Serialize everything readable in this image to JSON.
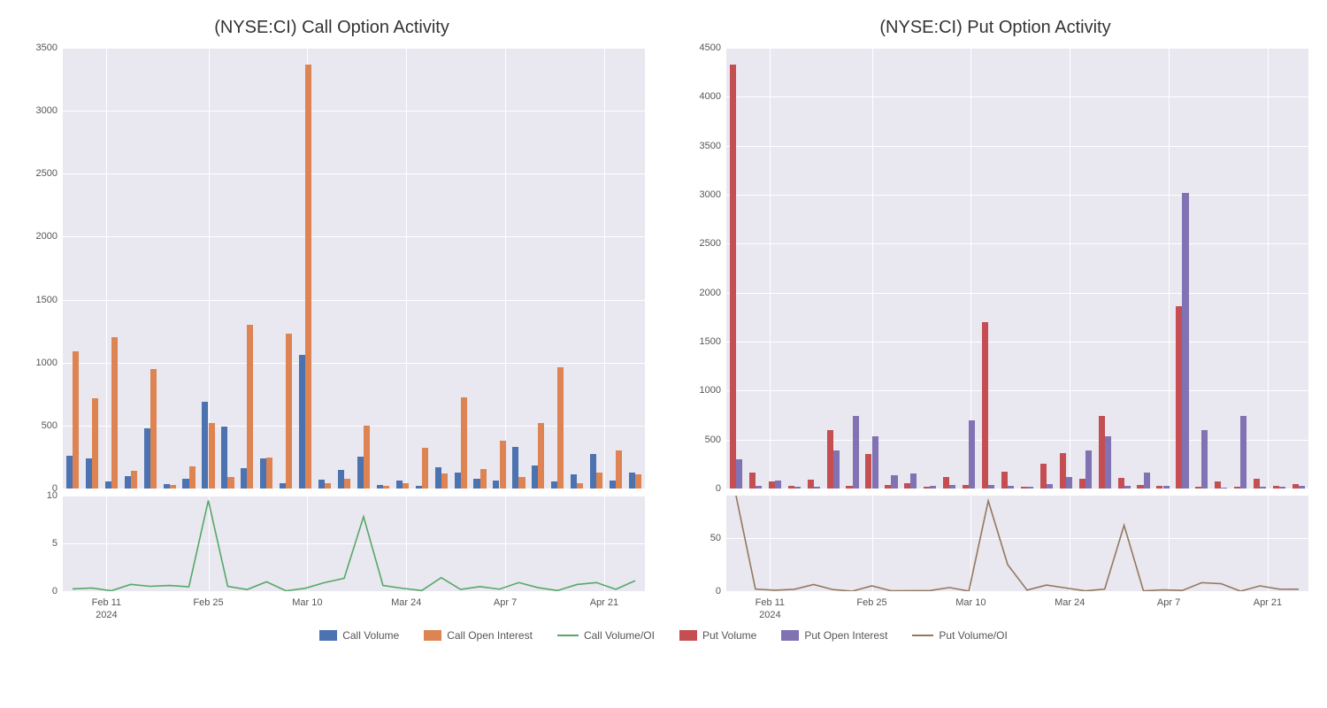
{
  "dates": [
    "2024-02-07",
    "2024-02-09",
    "2024-02-13",
    "2024-02-15",
    "2024-02-17",
    "2024-02-21",
    "2024-02-24",
    "2024-02-27",
    "2024-02-29",
    "2024-03-02",
    "2024-03-05",
    "2024-03-08",
    "2024-03-11",
    "2024-03-13",
    "2024-03-15",
    "2024-03-18",
    "2024-03-21",
    "2024-03-24",
    "2024-03-27",
    "2024-03-30",
    "2024-04-02",
    "2024-04-04",
    "2024-04-07",
    "2024-04-09",
    "2024-04-12",
    "2024-04-15",
    "2024-04-18",
    "2024-04-21",
    "2024-04-24",
    "2024-04-26"
  ],
  "xticks": [
    {
      "pos": 0.075,
      "label": "Feb 11",
      "sub": "2024"
    },
    {
      "pos": 0.25,
      "label": "Feb 25",
      "sub": ""
    },
    {
      "pos": 0.42,
      "label": "Mar 10",
      "sub": ""
    },
    {
      "pos": 0.59,
      "label": "Mar 24",
      "sub": ""
    },
    {
      "pos": 0.76,
      "label": "Apr 7",
      "sub": ""
    },
    {
      "pos": 0.93,
      "label": "Apr 21",
      "sub": ""
    }
  ],
  "panels": [
    {
      "id": "call",
      "title": "(NYSE:CI) Call Option Activity",
      "bar_ylim": [
        0,
        3500
      ],
      "bar_ytick_step": 500,
      "line_ylim": [
        0,
        10
      ],
      "line_ytick_step": 5,
      "series": [
        {
          "key": "volume",
          "color": "#4c72b0",
          "values": [
            260,
            240,
            55,
            100,
            480,
            35,
            80,
            690,
            490,
            160,
            240,
            40,
            1060,
            70,
            145,
            250,
            30,
            65,
            20,
            170,
            130,
            75,
            65,
            330,
            185,
            55,
            115,
            275,
            60,
            130
          ]
        },
        {
          "key": "oi",
          "color": "#dd8452",
          "values": [
            1090,
            720,
            1200,
            140,
            950,
            25,
            175,
            520,
            90,
            1300,
            245,
            1230,
            3370,
            45,
            75,
            500,
            20,
            40,
            320,
            120,
            725,
            155,
            380,
            90,
            520,
            960,
            40,
            130,
            300,
            115
          ]
        }
      ],
      "ratio": {
        "color": "#55a868",
        "values": [
          0.24,
          0.33,
          0.05,
          0.71,
          0.51,
          0.6,
          0.46,
          9.5,
          0.5,
          0.17,
          0.98,
          0.04,
          0.31,
          0.9,
          1.35,
          7.8,
          0.6,
          0.3,
          0.06,
          1.42,
          0.18,
          0.48,
          0.21,
          0.9,
          0.36,
          0.06,
          0.7,
          0.9,
          0.2,
          1.1
        ]
      }
    },
    {
      "id": "put",
      "title": "(NYSE:CI) Put Option Activity",
      "bar_ylim": [
        0,
        4500
      ],
      "bar_ytick_step": 500,
      "line_ylim": [
        0,
        90
      ],
      "line_ytick_step": 50,
      "series": [
        {
          "key": "volume",
          "color": "#c44e52",
          "values": [
            4330,
            160,
            75,
            25,
            95,
            595,
            30,
            355,
            40,
            50,
            15,
            120,
            35,
            1695,
            170,
            20,
            255,
            360,
            100,
            740,
            105,
            35,
            30,
            1860,
            15,
            70,
            15,
            100,
            30,
            45
          ]
        },
        {
          "key": "oi",
          "color": "#8172b3",
          "values": [
            300,
            30,
            80,
            15,
            15,
            390,
            740,
            530,
            140,
            155,
            25,
            35,
            695,
            35,
            25,
            20,
            45,
            120,
            385,
            535,
            25,
            160,
            25,
            3020,
            600,
            10,
            740,
            20,
            15,
            25
          ]
        }
      ],
      "ratio": {
        "color": "#937860",
        "values": [
          90,
          2,
          0.9,
          1.7,
          6.3,
          1.5,
          0.04,
          5,
          0.3,
          0.5,
          0.6,
          3.4,
          0.05,
          85,
          25,
          1,
          5.7,
          3,
          0.26,
          2,
          62,
          0.22,
          1.2,
          0.62,
          8,
          7,
          0.02,
          5,
          2,
          1.8
        ]
      }
    }
  ],
  "legend": [
    {
      "type": "rect",
      "color": "#4c72b0",
      "label": "Call Volume"
    },
    {
      "type": "rect",
      "color": "#dd8452",
      "label": "Call Open Interest"
    },
    {
      "type": "line",
      "color": "#55a868",
      "label": "Call Volume/OI"
    },
    {
      "type": "rect",
      "color": "#c44e52",
      "label": "Put Volume"
    },
    {
      "type": "rect",
      "color": "#8172b3",
      "label": "Put Open Interest"
    },
    {
      "type": "line",
      "color": "#937860",
      "label": "Put Volume/OI"
    }
  ],
  "style": {
    "background": "#ffffff",
    "plot_bg": "#e9e7ef",
    "grid_color": "#ffffff",
    "title_fontsize": 20,
    "tick_fontsize": 11,
    "bar_group_width": 0.65,
    "line_width": 1.6
  }
}
